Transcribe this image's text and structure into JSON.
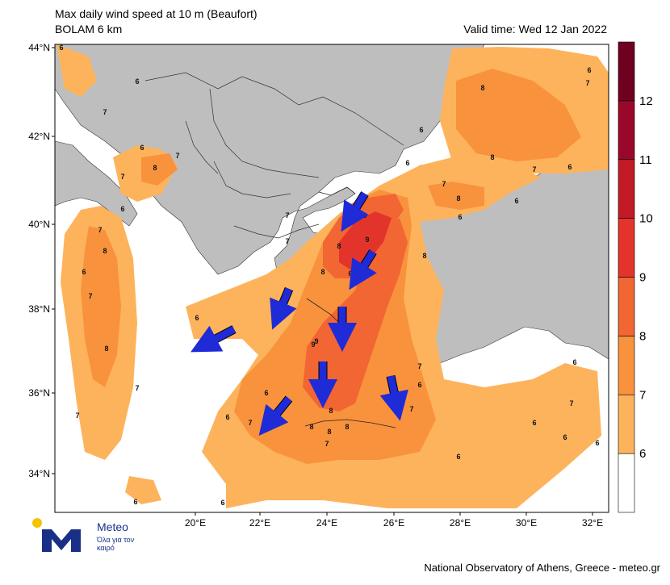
{
  "header": {
    "title_line1": "Max daily wind speed at 10 m (Beaufort)",
    "title_line2": "BOLAM 6 km",
    "valid_time": "Valid time: Wed 12 Jan 2022"
  },
  "map": {
    "lat_labels": [
      "44°N",
      "42°N",
      "40°N",
      "38°N",
      "36°N",
      "34°N"
    ],
    "lon_labels": [
      "20°E",
      "22°E",
      "24°E",
      "26°E",
      "28°E",
      "30°E",
      "32°E"
    ],
    "land_color": "#bebebe",
    "sea_color": "#ffffff",
    "contour_labels": [
      "6",
      "6",
      "7",
      "6",
      "7",
      "8",
      "6",
      "7",
      "8",
      "7",
      "6",
      "7",
      "8",
      "7",
      "7",
      "6",
      "7",
      "6",
      "6",
      "6",
      "7",
      "9",
      "9",
      "8",
      "9",
      "8",
      "8",
      "9",
      "8",
      "7",
      "6",
      "6",
      "7",
      "7",
      "6",
      "8",
      "7",
      "6",
      "6",
      "6",
      "6",
      "6",
      "8",
      "7",
      "6",
      "8",
      "8",
      "7",
      "6",
      "6",
      "8",
      "7",
      "6",
      "9",
      "7",
      "8",
      "6",
      "6"
    ],
    "wind_arrows": [
      {
        "direction": "south-southwest"
      },
      {
        "direction": "south-southwest"
      },
      {
        "direction": "south-southwest"
      },
      {
        "direction": "south"
      },
      {
        "direction": "south"
      },
      {
        "direction": "south"
      },
      {
        "direction": "southwest"
      },
      {
        "direction": "west-southwest"
      }
    ],
    "arrow_color": "#1f2bd6"
  },
  "colorbar": {
    "levels": [
      "6",
      "7",
      "8",
      "9",
      "10",
      "11",
      "12"
    ],
    "colors": [
      "#ffffff",
      "#fdb35c",
      "#f9923d",
      "#f26633",
      "#e3342c",
      "#c21b27",
      "#99082a",
      "#6f0020"
    ]
  },
  "logo": {
    "name": "Meteo",
    "tagline": "Όλα για τον καιρό"
  },
  "footer": {
    "credit": "National Observatory of Athens, Greece - meteo.gr"
  }
}
